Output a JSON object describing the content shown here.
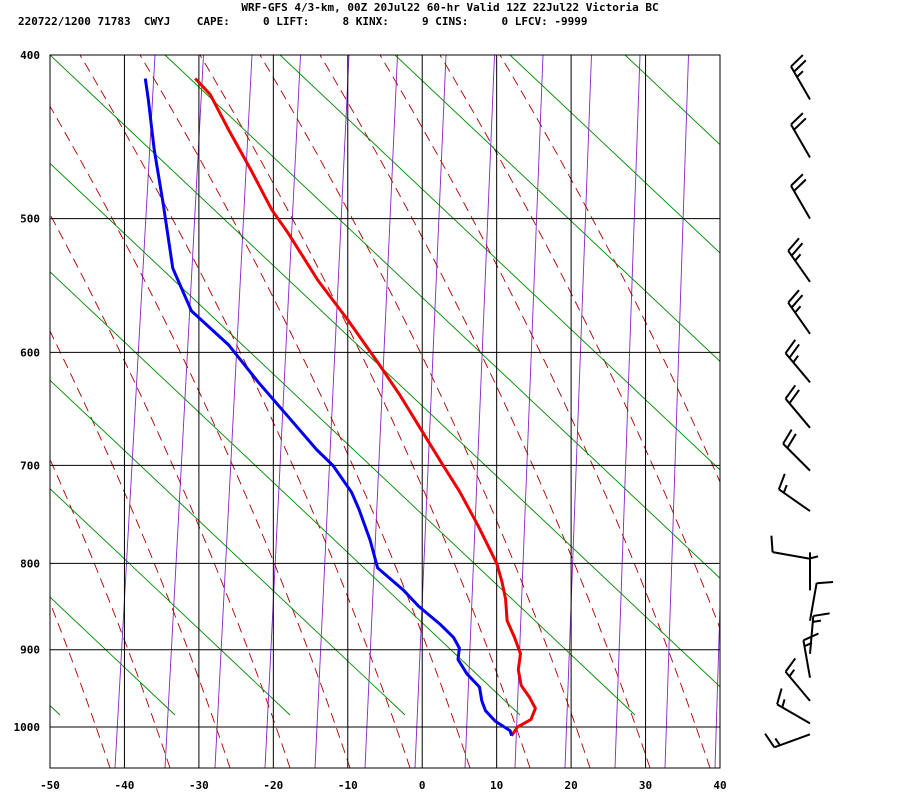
{
  "header": {
    "title": "WRF-GFS 4/3-km, 00Z 20Jul22 60-hr Valid 12Z 22Jul22 Victoria BC",
    "stats": "220722/1200 71783  CWYJ    CAPE:     0 LIFT:     8 KINX:     9 CINS:     0 LFCV: -9999"
  },
  "chart_data": {
    "type": "line",
    "title": "WRF-GFS 4/3-km, 00Z 20Jul22 60-hr Valid 12Z 22Jul22 Victoria BC",
    "xlabel": "",
    "ylabel": "",
    "xlim": [
      -50,
      40
    ],
    "ylim": [
      1045,
      400
    ],
    "y_scale": "log",
    "grid": true,
    "x_ticks": [
      -50,
      -40,
      -30,
      -20,
      -10,
      0,
      10,
      20,
      30,
      40
    ],
    "y_ticks": [
      400,
      500,
      600,
      700,
      800,
      900,
      1000
    ],
    "series": [
      {
        "color": "#ee0000",
        "points": [
          [
            12.0,
            1012
          ],
          [
            12.8,
            1000
          ],
          [
            14.6,
            990
          ],
          [
            15.2,
            975
          ],
          [
            14.4,
            960
          ],
          [
            13.3,
            945
          ],
          [
            12.9,
            925
          ],
          [
            13.2,
            905
          ],
          [
            12.4,
            885
          ],
          [
            11.4,
            865
          ],
          [
            11.2,
            840
          ],
          [
            10.7,
            820
          ],
          [
            10.0,
            800
          ],
          [
            7.5,
            760
          ],
          [
            5.0,
            725
          ],
          [
            2.8,
            700
          ],
          [
            -0.3,
            665
          ],
          [
            -3.0,
            636
          ],
          [
            -6.0,
            608
          ],
          [
            -10.0,
            574
          ],
          [
            -14.0,
            544
          ],
          [
            -18.0,
            510
          ],
          [
            -20.2,
            494
          ],
          [
            -23.0,
            468
          ],
          [
            -26.0,
            443
          ],
          [
            -28.5,
            422
          ],
          [
            -30.5,
            413
          ]
        ]
      },
      {
        "color": "#0000ee",
        "points": [
          [
            12.0,
            1012
          ],
          [
            11.8,
            1005
          ],
          [
            9.8,
            992
          ],
          [
            8.5,
            978
          ],
          [
            8.0,
            965
          ],
          [
            7.7,
            947
          ],
          [
            6.0,
            930
          ],
          [
            4.8,
            912
          ],
          [
            5.0,
            898
          ],
          [
            4.2,
            885
          ],
          [
            2.5,
            870
          ],
          [
            -0.5,
            848
          ],
          [
            -2.5,
            830
          ],
          [
            -6.0,
            805
          ],
          [
            -7.0,
            775
          ],
          [
            -8.5,
            743
          ],
          [
            -9.5,
            726
          ],
          [
            -12.0,
            700
          ],
          [
            -14.2,
            685
          ],
          [
            -18.0,
            655
          ],
          [
            -22.0,
            625
          ],
          [
            -26.0,
            594
          ],
          [
            -31.0,
            567
          ],
          [
            -33.5,
            535
          ],
          [
            -34.8,
            490
          ],
          [
            -36.0,
            455
          ],
          [
            -36.8,
            425
          ],
          [
            -37.2,
            413
          ]
        ]
      }
    ],
    "wind_barbs": [
      {
        "p": 1010,
        "dir": 250,
        "spd": 15
      },
      {
        "p": 995,
        "dir": 300,
        "spd": 15
      },
      {
        "p": 965,
        "dir": 320,
        "spd": 15
      },
      {
        "p": 935,
        "dir": 350,
        "spd": 15
      },
      {
        "p": 905,
        "dir": 5,
        "spd": 15
      },
      {
        "p": 865,
        "dir": 10,
        "spd": 10
      },
      {
        "p": 830,
        "dir": 0,
        "spd": 5
      },
      {
        "p": 795,
        "dir": 280,
        "spd": 10
      },
      {
        "p": 745,
        "dir": 305,
        "spd": 15
      },
      {
        "p": 705,
        "dir": 315,
        "spd": 20
      },
      {
        "p": 665,
        "dir": 320,
        "spd": 20
      },
      {
        "p": 625,
        "dir": 320,
        "spd": 25
      },
      {
        "p": 585,
        "dir": 325,
        "spd": 25
      },
      {
        "p": 545,
        "dir": 325,
        "spd": 25
      },
      {
        "p": 500,
        "dir": 330,
        "spd": 20
      },
      {
        "p": 460,
        "dir": 330,
        "spd": 20
      },
      {
        "p": 425,
        "dir": 330,
        "spd": 25
      }
    ]
  },
  "colors": {
    "temperature": "#ee0000",
    "dewpoint": "#0000ee",
    "isotherm_grid": "#000000",
    "dry_adiabat": "#aa0000",
    "moist_adiabat": "#008800",
    "mixing_ratio": "#8822cc"
  }
}
